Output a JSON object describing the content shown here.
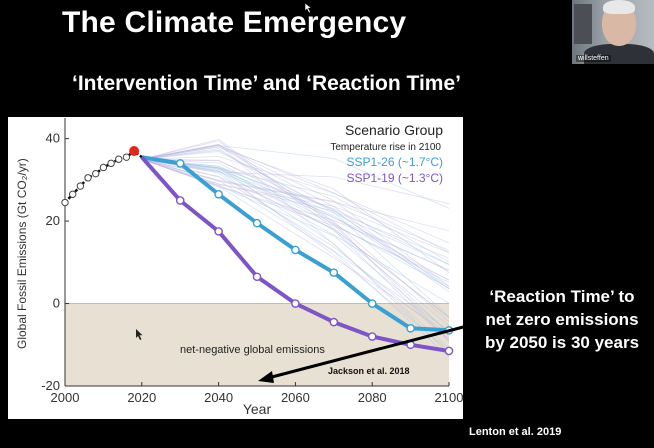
{
  "slide": {
    "title": "The Climate Emergency",
    "subtitle": "‘Intervention Time’ and ‘Reaction Time’",
    "reaction_note": [
      "‘Reaction Time’ to",
      "net zero emissions",
      "by 2050 is 30 years"
    ],
    "credit": "Lenton et al. 2019"
  },
  "webcam": {
    "participant_name": "willsteffen"
  },
  "chart_data": {
    "type": "line",
    "xlabel": "Year",
    "ylabel": "Global Fossil Emissions (Gt CO₂/yr)",
    "xlim": [
      2000,
      2100
    ],
    "ylim": [
      -20,
      45
    ],
    "xticks": [
      2000,
      2020,
      2040,
      2060,
      2080,
      2100
    ],
    "yticks": [
      -20,
      0,
      20,
      40
    ],
    "legend": {
      "title": "Scenario Group",
      "subtitle": "Temperature rise in 2100",
      "placement": "top-right"
    },
    "annotations": {
      "net_negative_region": "net-negative global emissions",
      "source_label": "Jackson et al. 2018"
    },
    "historical": {
      "x": [
        2000,
        2002,
        2004,
        2006,
        2008,
        2010,
        2012,
        2014,
        2016,
        2018
      ],
      "y": [
        24.5,
        26.5,
        28.5,
        30.5,
        31.5,
        33,
        34,
        35,
        35.5,
        37
      ],
      "last_point_color": "#e0281e"
    },
    "series": [
      {
        "name": "SSP1-26 (~1.7°C)",
        "color": "#3a9fd2",
        "x": [
          2020,
          2030,
          2040,
          2050,
          2060,
          2070,
          2080,
          2090,
          2100
        ],
        "y": [
          35.5,
          34,
          26.5,
          19.5,
          13,
          7.5,
          0,
          -6,
          -6.5
        ]
      },
      {
        "name": "SSP1-19 (~1.3°C)",
        "color": "#7d55c7",
        "x": [
          2020,
          2030,
          2040,
          2050,
          2060,
          2070,
          2080,
          2090,
          2100
        ],
        "y": [
          35.5,
          25,
          17.5,
          6.5,
          0,
          -4.5,
          -8,
          -10,
          -11.5
        ]
      }
    ],
    "background_scenarios": "many faint individual scenario pathways",
    "grid": false
  },
  "colors": {
    "background": "#000000",
    "net_negative_fill": "#e8e1d3",
    "ssp126": "#3a9fd2",
    "ssp119": "#7d55c7"
  }
}
